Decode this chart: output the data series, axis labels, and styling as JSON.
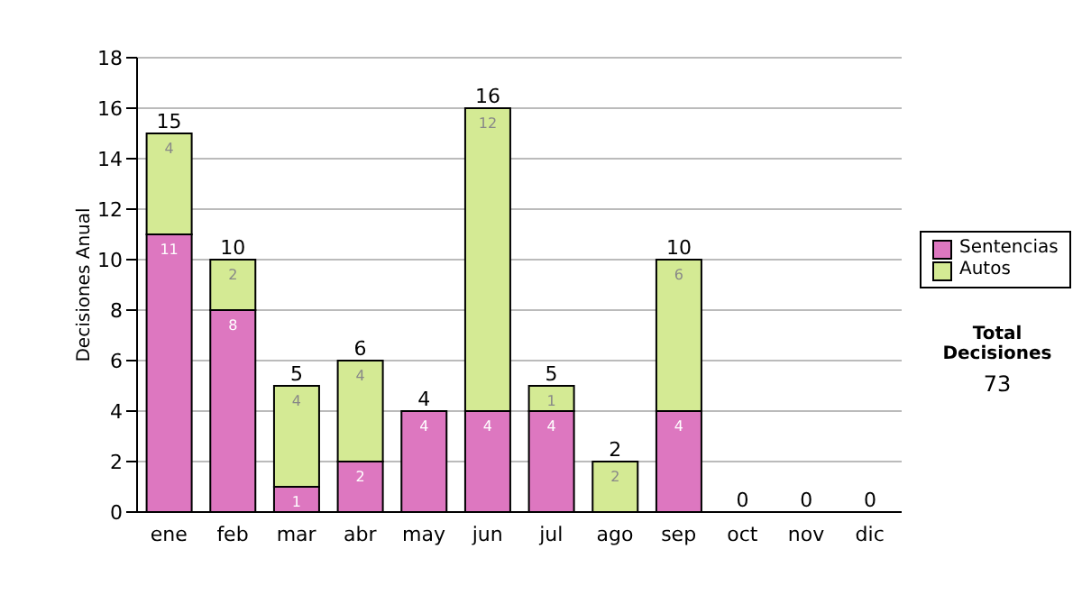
{
  "chart_data": {
    "type": "bar",
    "stacked": true,
    "ylabel": "Decisiones Anual",
    "categories": [
      "ene",
      "feb",
      "mar",
      "abr",
      "may",
      "jun",
      "jul",
      "ago",
      "sep",
      "oct",
      "nov",
      "dic"
    ],
    "series": [
      {
        "name": "Sentencias",
        "color": "#dd77c0",
        "values": [
          11,
          8,
          1,
          2,
          4,
          4,
          4,
          0,
          4,
          0,
          0,
          0
        ],
        "value_labels": [
          "11",
          "8",
          "1",
          "2",
          "4",
          "4",
          "4",
          null,
          "4",
          null,
          null,
          null
        ]
      },
      {
        "name": "Autos",
        "color": "#d4ea94",
        "values": [
          4,
          2,
          4,
          4,
          0,
          12,
          1,
          2,
          6,
          0,
          0,
          0
        ],
        "value_labels": [
          "4",
          "2",
          "4",
          "4",
          null,
          "12",
          "1",
          "2",
          "6",
          null,
          null,
          null
        ]
      }
    ],
    "totals": [
      "15",
      "10",
      "5",
      "6",
      "4",
      "16",
      "5",
      "2",
      "10",
      "0",
      "0",
      "0"
    ],
    "ylim": [
      0,
      18
    ],
    "yticks": [
      0,
      2,
      4,
      6,
      8,
      10,
      12,
      14,
      16,
      18
    ],
    "grid": "y",
    "legend": "right",
    "annotations": [
      "Total Decisiones",
      "73"
    ]
  }
}
